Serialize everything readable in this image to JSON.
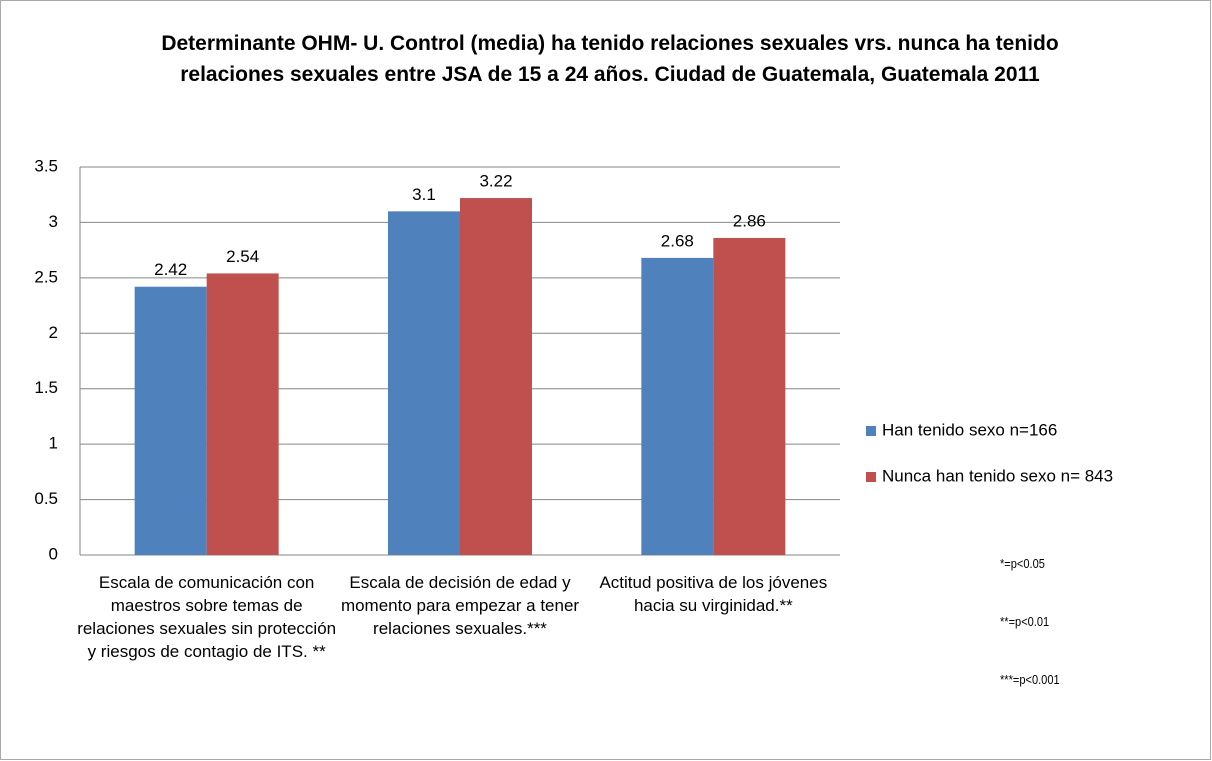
{
  "chart_data": {
    "type": "bar",
    "title": "Determinante OHM- U. Control (media) ha tenido relaciones sexuales vrs. nunca ha tenido relaciones sexuales entre JSA de 15 a 24 años. Ciudad de Guatemala, Guatemala 2011",
    "categories": [
      "Escala de comunicación con maestros sobre temas de relaciones sexuales sin protección y riesgos de contagio de ITS. **",
      "Escala de decisión de edad y momento para empezar a tener relaciones sexuales.***",
      "Actitud positiva de los jóvenes hacia su virginidad.**"
    ],
    "series": [
      {
        "name": "Han tenido sexo n=166",
        "color": "#4f81bd",
        "values": [
          2.42,
          3.1,
          2.68
        ]
      },
      {
        "name": "Nunca han tenido sexo n= 843",
        "color": "#c0504d",
        "values": [
          2.54,
          3.22,
          2.86
        ]
      }
    ],
    "ylim": [
      0,
      3.5
    ],
    "yticks": [
      0,
      0.5,
      1,
      1.5,
      2,
      2.5,
      3,
      3.5
    ],
    "grid": true,
    "legend": "right",
    "annotations": [
      "*=p<0.05",
      "**=p<0.01",
      "***=p<0.001"
    ]
  }
}
